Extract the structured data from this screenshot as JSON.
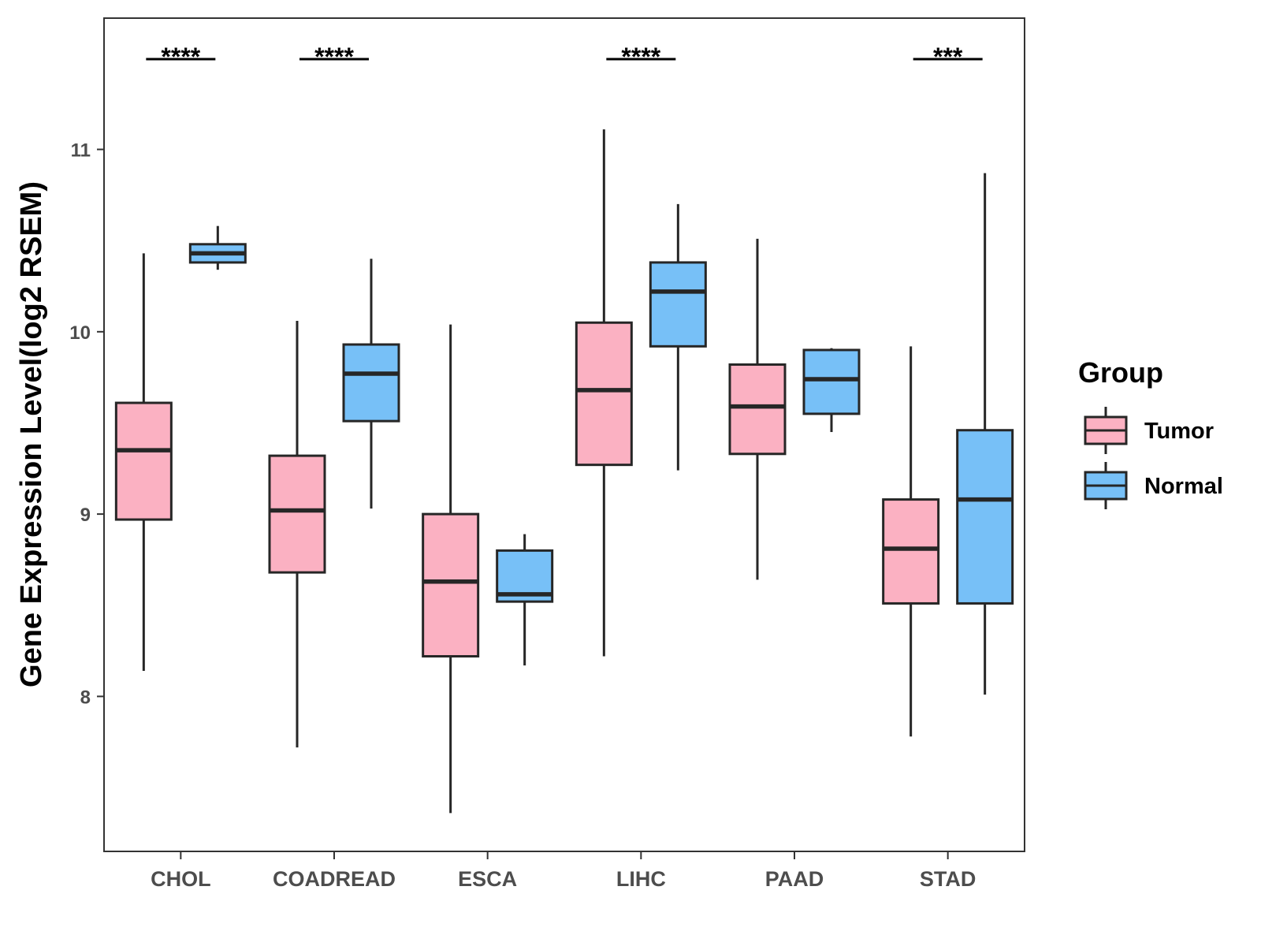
{
  "chart_data": {
    "type": "boxplot",
    "title": "",
    "xlabel": "",
    "ylabel": "Gene Expression Level(log2 RSEM)",
    "ylim": [
      7.15,
      11.72
    ],
    "yticks": [
      8,
      9,
      10,
      11
    ],
    "ytick_labels": [
      "8",
      "9",
      "10",
      "11"
    ],
    "categories": [
      "CHOL",
      "COADREAD",
      "ESCA",
      "LIHC",
      "PAAD",
      "STAD"
    ],
    "legend": {
      "title": "Group",
      "position": "right",
      "entries": [
        {
          "name": "Tumor",
          "color": "#fbb1c2"
        },
        {
          "name": "Normal",
          "color": "#77c0f7"
        }
      ]
    },
    "series": [
      {
        "name": "Tumor",
        "color": "#fbb1c2",
        "boxes": [
          {
            "min": 8.14,
            "q1": 8.97,
            "median": 9.35,
            "q3": 9.61,
            "max": 10.43
          },
          {
            "min": 7.72,
            "q1": 8.68,
            "median": 9.02,
            "q3": 9.32,
            "max": 10.06
          },
          {
            "min": 7.36,
            "q1": 8.22,
            "median": 8.63,
            "q3": 9.0,
            "max": 10.04
          },
          {
            "min": 8.22,
            "q1": 9.27,
            "median": 9.68,
            "q3": 10.05,
            "max": 11.11
          },
          {
            "min": 8.64,
            "q1": 9.33,
            "median": 9.59,
            "q3": 9.82,
            "max": 10.51
          },
          {
            "min": 7.78,
            "q1": 8.51,
            "median": 8.81,
            "q3": 9.08,
            "max": 9.92
          }
        ]
      },
      {
        "name": "Normal",
        "color": "#77c0f7",
        "boxes": [
          {
            "min": 10.34,
            "q1": 10.38,
            "median": 10.43,
            "q3": 10.48,
            "max": 10.58
          },
          {
            "min": 9.03,
            "q1": 9.51,
            "median": 9.77,
            "q3": 9.93,
            "max": 10.4
          },
          {
            "min": 8.17,
            "q1": 8.52,
            "median": 8.56,
            "q3": 8.8,
            "max": 8.89
          },
          {
            "min": 9.24,
            "q1": 9.92,
            "median": 10.22,
            "q3": 10.38,
            "max": 10.7
          },
          {
            "min": 9.45,
            "q1": 9.55,
            "median": 9.74,
            "q3": 9.9,
            "max": 9.91
          },
          {
            "min": 8.01,
            "q1": 8.51,
            "median": 9.08,
            "q3": 9.46,
            "max": 10.87
          }
        ]
      }
    ],
    "significance": [
      {
        "category": "CHOL",
        "label": "****"
      },
      {
        "category": "COADREAD",
        "label": "****"
      },
      {
        "category": "ESCA",
        "label": ""
      },
      {
        "category": "LIHC",
        "label": "****"
      },
      {
        "category": "PAAD",
        "label": ""
      },
      {
        "category": "STAD",
        "label": "***"
      }
    ]
  }
}
